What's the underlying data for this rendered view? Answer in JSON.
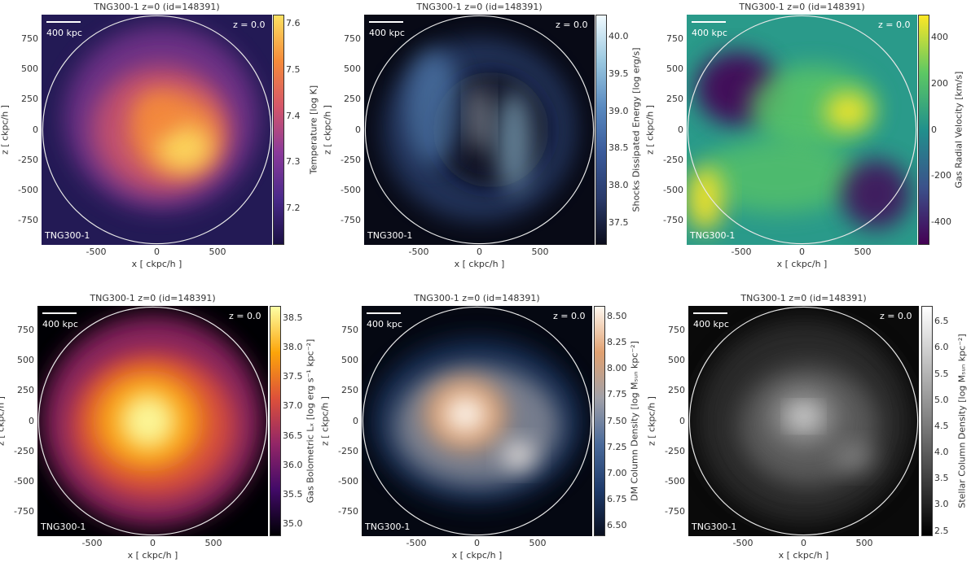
{
  "panels": [
    {
      "title": "TNG300-1 z=0 (id=148391)",
      "redshift_label": "z = 0.0",
      "scale_label": "400 kpc",
      "sim_label": "TNG300-1",
      "xlabel": "x [ ckpc/h ]",
      "ylabel": "z [ ckpc/h ]",
      "xticks": [
        "-500",
        "0",
        "500"
      ],
      "yticks": [
        "750",
        "500",
        "250",
        "0",
        "-250",
        "-500",
        "-750"
      ],
      "cbar_label": "Temperature [log K]",
      "cbar_ticks": [
        "7.6",
        "7.5",
        "7.4",
        "7.3",
        "7.2"
      ],
      "colormap": [
        "#1a1044",
        "#4a2a8a",
        "#8a3a9a",
        "#d4566a",
        "#f58a3a",
        "#fde060"
      ],
      "bg": "#231a55"
    },
    {
      "title": "TNG300-1 z=0 (id=148391)",
      "redshift_label": "z = 0.0",
      "scale_label": "400 kpc",
      "sim_label": "TNG300-1",
      "xlabel": "x [ ckpc/h ]",
      "ylabel": "z [ ckpc/h ]",
      "xticks": [
        "-500",
        "0",
        "500"
      ],
      "yticks": [
        "750",
        "500",
        "250",
        "0",
        "-250",
        "-500",
        "-750"
      ],
      "cbar_label": "Shocks Dissipated Energy [log erg/s]",
      "cbar_ticks": [
        "40.0",
        "39.5",
        "39.0",
        "38.5",
        "38.0",
        "37.5"
      ],
      "colormap": [
        "#0b0d1c",
        "#2a3a6a",
        "#3a5a9a",
        "#5a8ac0",
        "#9ac8e0",
        "#f0faff"
      ],
      "bg": "#080a16"
    },
    {
      "title": "TNG300-1 z=0 (id=148391)",
      "redshift_label": "z = 0.0",
      "scale_label": "400 kpc",
      "sim_label": "TNG300-1",
      "xlabel": "x [ ckpc/h ]",
      "ylabel": "z [ ckpc/h ]",
      "xticks": [
        "-500",
        "0",
        "500"
      ],
      "yticks": [
        "750",
        "500",
        "250",
        "0",
        "-250",
        "-500",
        "-750"
      ],
      "cbar_label": "Gas Radial Velocity [km/s]",
      "cbar_ticks": [
        "400",
        "200",
        "0",
        "-200",
        "-400"
      ],
      "colormap": [
        "#440154",
        "#3b528b",
        "#21908c",
        "#5dc863",
        "#fde725"
      ],
      "bg": "#2a9a8a"
    },
    {
      "title": "TNG300-1 z=0 (id=148391)",
      "redshift_label": "z = 0.0",
      "scale_label": "400 kpc",
      "sim_label": "TNG300-1",
      "xlabel": "x [ ckpc/h ]",
      "ylabel": "z [ ckpc/h ]",
      "xticks": [
        "-500",
        "0",
        "500"
      ],
      "yticks": [
        "750",
        "500",
        "250",
        "0",
        "-250",
        "-500",
        "-750"
      ],
      "cbar_label": "Gas Bolometric Lₓ [log erg s⁻¹ kpc⁻²]",
      "cbar_ticks": [
        "38.5",
        "38.0",
        "37.5",
        "37.0",
        "36.5",
        "36.0",
        "35.5",
        "35.0"
      ],
      "colormap": [
        "#000004",
        "#420a68",
        "#932667",
        "#dd513a",
        "#fca50a",
        "#fcffa4"
      ],
      "bg": "#000004"
    },
    {
      "title": "TNG300-1 z=0 (id=148391)",
      "redshift_label": "z = 0.0",
      "scale_label": "400 kpc",
      "sim_label": "TNG300-1",
      "xlabel": "x [ ckpc/h ]",
      "ylabel": "z [ ckpc/h ]",
      "xticks": [
        "-500",
        "0",
        "500"
      ],
      "yticks": [
        "750",
        "500",
        "250",
        "0",
        "-250",
        "-500",
        "-750"
      ],
      "cbar_label": "DM Column Density [log Mₛᵤₙ kpc⁻²]",
      "cbar_ticks": [
        "8.50",
        "8.25",
        "8.00",
        "7.75",
        "7.50",
        "7.25",
        "7.00",
        "6.75",
        "6.50"
      ],
      "colormap": [
        "#0a1020",
        "#1e3a6a",
        "#4a6a9a",
        "#a0a0a8",
        "#e0a070",
        "#fff8f0"
      ],
      "bg": "#050812"
    },
    {
      "title": "TNG300-1 z=0 (id=148391)",
      "redshift_label": "z = 0.0",
      "scale_label": "400 kpc",
      "sim_label": "TNG300-1",
      "xlabel": "x [ ckpc/h ]",
      "ylabel": "z [ ckpc/h ]",
      "xticks": [
        "-500",
        "0",
        "500"
      ],
      "yticks": [
        "750",
        "500",
        "250",
        "0",
        "-250",
        "-500",
        "-750"
      ],
      "cbar_label": "Stellar Column Density [log Mₛᵤₙ kpc⁻²]",
      "cbar_ticks": [
        "6.5",
        "6.0",
        "5.5",
        "5.0",
        "4.5",
        "4.0",
        "3.5",
        "3.0",
        "2.5"
      ],
      "colormap": [
        "#000000",
        "#333333",
        "#666666",
        "#999999",
        "#cccccc",
        "#ffffff"
      ],
      "bg": "#0a0a0a"
    }
  ],
  "chart_data": [
    {
      "type": "heatmap",
      "title": "TNG300-1 z=0 (id=148391)",
      "xlabel": "x [ ckpc/h ]",
      "ylabel": "z [ ckpc/h ]",
      "xlim": [
        -950,
        950
      ],
      "ylim": [
        -950,
        950
      ],
      "xticks": [
        -500,
        0,
        500
      ],
      "yticks": [
        -750,
        -500,
        -250,
        0,
        250,
        500,
        750
      ],
      "colorbar": {
        "label": "Temperature [log K]",
        "range": [
          7.12,
          7.62
        ],
        "ticks": [
          7.2,
          7.3,
          7.4,
          7.5,
          7.6
        ]
      }
    },
    {
      "type": "heatmap",
      "title": "TNG300-1 z=0 (id=148391)",
      "xlabel": "x [ ckpc/h ]",
      "ylabel": "z [ ckpc/h ]",
      "xlim": [
        -950,
        950
      ],
      "ylim": [
        -950,
        950
      ],
      "xticks": [
        -500,
        0,
        500
      ],
      "yticks": [
        -750,
        -500,
        -250,
        0,
        250,
        500,
        750
      ],
      "colorbar": {
        "label": "Shocks Dissipated Energy [log erg/s]",
        "range": [
          37.2,
          40.3
        ],
        "ticks": [
          37.5,
          38.0,
          38.5,
          39.0,
          39.5,
          40.0
        ]
      }
    },
    {
      "type": "heatmap",
      "title": "TNG300-1 z=0 (id=148391)",
      "xlabel": "x [ ckpc/h ]",
      "ylabel": "z [ ckpc/h ]",
      "xlim": [
        -950,
        950
      ],
      "ylim": [
        -950,
        950
      ],
      "xticks": [
        -500,
        0,
        500
      ],
      "yticks": [
        -750,
        -500,
        -250,
        0,
        250,
        500,
        750
      ],
      "colorbar": {
        "label": "Gas Radial Velocity [km/s]",
        "range": [
          -500,
          500
        ],
        "ticks": [
          -400,
          -200,
          0,
          200,
          400
        ]
      }
    },
    {
      "type": "heatmap",
      "title": "TNG300-1 z=0 (id=148391)",
      "xlabel": "x [ ckpc/h ]",
      "ylabel": "z [ ckpc/h ]",
      "xlim": [
        -950,
        950
      ],
      "ylim": [
        -950,
        950
      ],
      "xticks": [
        -500,
        0,
        500
      ],
      "yticks": [
        -750,
        -500,
        -250,
        0,
        250,
        500,
        750
      ],
      "colorbar": {
        "label": "Gas Bolometric L_X [log erg s^-1 kpc^-2]",
        "range": [
          34.8,
          38.7
        ],
        "ticks": [
          35.0,
          35.5,
          36.0,
          36.5,
          37.0,
          37.5,
          38.0,
          38.5
        ]
      }
    },
    {
      "type": "heatmap",
      "title": "TNG300-1 z=0 (id=148391)",
      "xlabel": "x [ ckpc/h ]",
      "ylabel": "z [ ckpc/h ]",
      "xlim": [
        -950,
        950
      ],
      "ylim": [
        -950,
        950
      ],
      "xticks": [
        -500,
        0,
        500
      ],
      "yticks": [
        -750,
        -500,
        -250,
        0,
        250,
        500,
        750
      ],
      "colorbar": {
        "label": "DM Column Density [log M_sun kpc^-2]",
        "range": [
          6.4,
          8.6
        ],
        "ticks": [
          6.5,
          6.75,
          7.0,
          7.25,
          7.5,
          7.75,
          8.0,
          8.25,
          8.5
        ]
      }
    },
    {
      "type": "heatmap",
      "title": "TNG300-1 z=0 (id=148391)",
      "xlabel": "x [ ckpc/h ]",
      "ylabel": "z [ ckpc/h ]",
      "xlim": [
        -950,
        950
      ],
      "ylim": [
        -950,
        950
      ],
      "xticks": [
        -500,
        0,
        500
      ],
      "yticks": [
        -750,
        -500,
        -250,
        0,
        250,
        500,
        750
      ],
      "colorbar": {
        "label": "Stellar Column Density [log M_sun kpc^-2]",
        "range": [
          2.4,
          6.8
        ],
        "ticks": [
          2.5,
          3.0,
          3.5,
          4.0,
          4.5,
          5.0,
          5.5,
          6.0,
          6.5
        ]
      }
    }
  ]
}
